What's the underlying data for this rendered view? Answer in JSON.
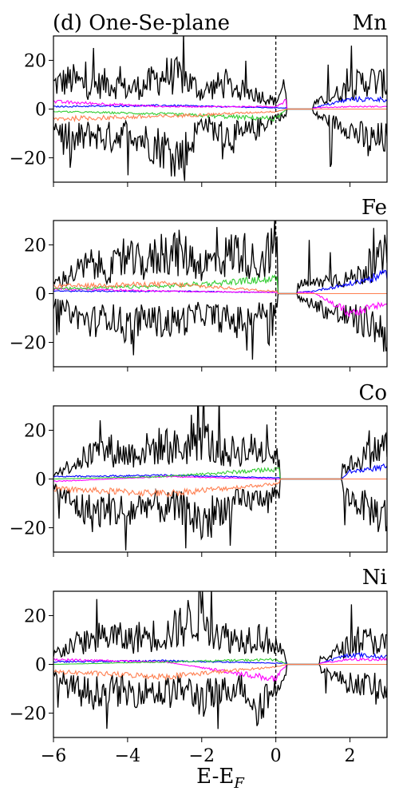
{
  "chart_data": [
    {
      "type": "line",
      "title": "(d) One-Se-plane",
      "label": "Mn",
      "xlim": [
        -6,
        3
      ],
      "ylim": [
        -30,
        30
      ],
      "xticks": [
        -6,
        -4,
        -2,
        0,
        2
      ],
      "yticks": [
        -20,
        0,
        20
      ],
      "fermi_level": 0,
      "gap": [
        0.3,
        1.0
      ],
      "colors": [
        "#000000",
        "#0000ff",
        "#ff00ff",
        "#32cd32",
        "#ff7f50"
      ],
      "series": [
        {
          "x": [
            -6,
            -5.5,
            -5,
            -4.5,
            -4,
            -3.5,
            -3,
            -2.5,
            -2,
            -1.5,
            -1,
            -0.5,
            0,
            0.3,
            1.0,
            1.5,
            2,
            2.5,
            3
          ],
          "values": [
            10,
            12,
            9,
            11,
            8,
            10,
            14,
            13,
            7,
            10,
            8,
            6,
            3,
            12,
            2,
            5,
            9,
            12,
            10
          ],
          "mirror": [
            -6,
            -14,
            -10,
            -12,
            -9,
            -13,
            -16,
            -20,
            -5,
            -10,
            -12,
            -8,
            -3,
            -3,
            -2,
            -5,
            -8,
            -14,
            -12
          ]
        },
        {
          "x": [
            -6,
            -3,
            0,
            0.3,
            1,
            2,
            3
          ],
          "values": [
            1,
            1.5,
            0.5,
            0.5,
            0.5,
            4,
            4
          ]
        },
        {
          "x": [
            -6,
            -3,
            0,
            0.3,
            1,
            2,
            3
          ],
          "values": [
            3,
            1,
            1,
            4,
            0.5,
            1,
            1
          ]
        },
        {
          "x": [
            -6,
            -3,
            0,
            0.3,
            1,
            2,
            3
          ],
          "values": [
            -1,
            -2,
            -4,
            0,
            0,
            0,
            0
          ]
        },
        {
          "x": [
            -6,
            -3,
            0,
            0.3,
            1,
            2,
            3
          ],
          "values": [
            -4,
            -3,
            -1,
            0,
            0,
            0,
            0
          ]
        }
      ]
    },
    {
      "type": "line",
      "label": "Fe",
      "xlim": [
        -6,
        3
      ],
      "ylim": [
        -30,
        30
      ],
      "xticks": [
        -6,
        -4,
        -2,
        0,
        2
      ],
      "yticks": [
        -20,
        0,
        20
      ],
      "fermi_level": 0,
      "gap": [
        0.05,
        0.6
      ],
      "colors": [
        "#000000",
        "#0000ff",
        "#ff00ff",
        "#32cd32",
        "#ff7f50"
      ],
      "series": [
        {
          "x": [
            -6,
            -5.5,
            -5,
            -4.5,
            -4,
            -3.5,
            -3,
            -2.5,
            -2,
            -1.5,
            -1,
            -0.5,
            0,
            0.6,
            1,
            1.5,
            2,
            2.5,
            3
          ],
          "values": [
            4,
            8,
            12,
            10,
            14,
            12,
            18,
            16,
            12,
            14,
            18,
            12,
            20,
            4,
            4,
            6,
            6,
            10,
            16
          ],
          "mirror": [
            -4,
            -8,
            -12,
            -9,
            -14,
            -10,
            -12,
            -11,
            -8,
            -10,
            -12,
            -8,
            -6,
            -2,
            -4,
            -8,
            -10,
            -12,
            -16
          ]
        },
        {
          "x": [
            -6,
            -3,
            0,
            0.6,
            1,
            2,
            3
          ],
          "values": [
            1,
            1,
            0.5,
            0.5,
            1,
            4,
            8
          ]
        },
        {
          "x": [
            -6,
            -3,
            0,
            0.6,
            1,
            2,
            3
          ],
          "values": [
            2,
            1,
            0.5,
            0.5,
            0.5,
            -8,
            -4
          ]
        },
        {
          "x": [
            -6,
            -3,
            0,
            0.6,
            1,
            2,
            3
          ],
          "values": [
            2,
            3,
            6,
            0,
            0,
            0,
            0
          ]
        },
        {
          "x": [
            -6,
            -3,
            0,
            0.6,
            1,
            2,
            3
          ],
          "values": [
            3,
            4,
            1,
            0,
            0,
            0,
            0
          ]
        }
      ]
    },
    {
      "type": "line",
      "label": "Co",
      "xlim": [
        -6,
        3
      ],
      "ylim": [
        -30,
        30
      ],
      "xticks": [
        -6,
        -4,
        -2,
        0,
        2
      ],
      "yticks": [
        -20,
        0,
        20
      ],
      "fermi_level": 0,
      "gap": [
        0.1,
        1.8
      ],
      "colors": [
        "#000000",
        "#0000ff",
        "#ff00ff",
        "#32cd32",
        "#ff7f50"
      ],
      "series": [
        {
          "x": [
            -6,
            -5.5,
            -5,
            -4.5,
            -4,
            -3.5,
            -3,
            -2.5,
            -2,
            -1.5,
            -1,
            -0.5,
            0,
            1.8,
            2,
            2.5,
            3
          ],
          "values": [
            2,
            6,
            10,
            12,
            10,
            12,
            14,
            12,
            18,
            10,
            12,
            12,
            10,
            4,
            6,
            10,
            14
          ],
          "mirror": [
            -3,
            -10,
            -14,
            -12,
            -14,
            -10,
            -12,
            -12,
            -18,
            -12,
            -10,
            -8,
            -6,
            -4,
            -8,
            -12,
            -16
          ]
        },
        {
          "x": [
            -6,
            -3,
            0,
            1.8,
            2,
            3
          ],
          "values": [
            1,
            1.5,
            0.5,
            0.5,
            3,
            5
          ]
        },
        {
          "x": [
            -6,
            -3,
            0,
            1.8,
            2,
            3
          ],
          "values": [
            -1,
            1,
            0,
            0,
            0,
            0
          ]
        },
        {
          "x": [
            -6,
            -3,
            0,
            1.8,
            2,
            3
          ],
          "values": [
            0,
            1,
            4,
            0,
            0,
            0
          ]
        },
        {
          "x": [
            -6,
            -3,
            0,
            1.8,
            2,
            3
          ],
          "values": [
            -4,
            -6,
            -2,
            0,
            0,
            0
          ]
        }
      ]
    },
    {
      "type": "line",
      "label": "Ni",
      "xlim": [
        -6,
        3
      ],
      "ylim": [
        -30,
        30
      ],
      "xticks": [
        -6,
        -4,
        -2,
        0,
        2
      ],
      "yticks": [
        -20,
        0,
        20
      ],
      "fermi_level": 0,
      "gap": [
        0.3,
        1.2
      ],
      "xlabel": "E-E",
      "xlabel_sub": "F",
      "colors": [
        "#000000",
        "#0000ff",
        "#ff00ff",
        "#32cd32",
        "#ff7f50"
      ],
      "series": [
        {
          "x": [
            -6,
            -5.5,
            -5,
            -4.5,
            -4,
            -3.5,
            -3,
            -2.5,
            -2,
            -1.5,
            -1,
            -0.5,
            0,
            0.3,
            1.2,
            1.5,
            2,
            2.5,
            3
          ],
          "values": [
            4,
            8,
            10,
            12,
            10,
            12,
            12,
            16,
            22,
            12,
            10,
            12,
            8,
            2,
            2,
            4,
            8,
            10,
            8
          ],
          "mirror": [
            -4,
            -10,
            -12,
            -10,
            -12,
            -10,
            -12,
            -10,
            -14,
            -12,
            -8,
            -16,
            -10,
            -2,
            -2,
            -4,
            -8,
            -8,
            -10
          ]
        },
        {
          "x": [
            -6,
            -3,
            0,
            0.3,
            1.2,
            2,
            3
          ],
          "values": [
            1,
            1.5,
            0.5,
            0.5,
            0.5,
            4,
            3
          ]
        },
        {
          "x": [
            -6,
            -3,
            0,
            0.3,
            1.2,
            2,
            3
          ],
          "values": [
            2,
            1,
            -6,
            0,
            0.5,
            2,
            2
          ]
        },
        {
          "x": [
            -6,
            -3,
            0,
            0.3,
            1.2,
            2,
            3
          ],
          "values": [
            0,
            1,
            2,
            0,
            0,
            0,
            0
          ]
        },
        {
          "x": [
            -6,
            -3,
            0,
            0.3,
            1.2,
            2,
            3
          ],
          "values": [
            -3,
            -5,
            -1,
            0,
            0,
            0,
            0
          ]
        }
      ]
    }
  ]
}
